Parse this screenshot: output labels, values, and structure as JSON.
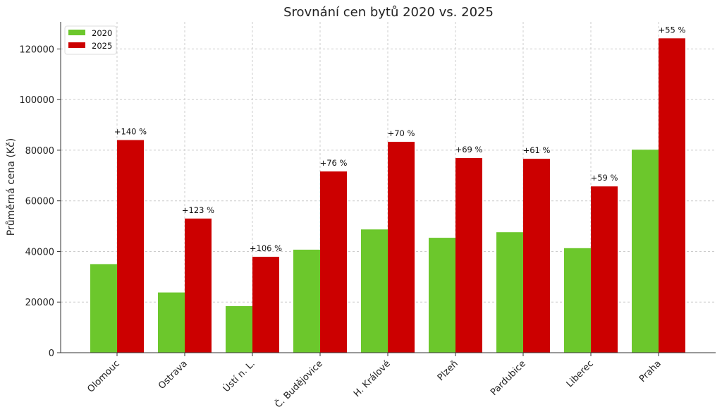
{
  "chart_data": {
    "type": "bar",
    "title": "Srovnání cen bytů 2020 vs. 2025",
    "xlabel": "",
    "ylabel": "Průměrná cena (Kč)",
    "ylim": [
      0,
      130700
    ],
    "yticks": [
      0,
      20000,
      40000,
      60000,
      80000,
      100000,
      120000
    ],
    "grid": true,
    "legend": "top-left",
    "categories": [
      "Olomouc",
      "Ostrava",
      "Ústí n. L.",
      "Č. Budějovice",
      "H. Králové",
      "Plzeň",
      "Pardubice",
      "Liberec",
      "Praha"
    ],
    "series": [
      {
        "name": "2020",
        "color": "#6cc72c",
        "values": [
          35000,
          23800,
          18400,
          40700,
          48700,
          45400,
          47600,
          41300,
          80200
        ]
      },
      {
        "name": "2025",
        "color": "#cc0000",
        "values": [
          84000,
          53000,
          37900,
          71600,
          83300,
          76900,
          76600,
          65700,
          124200
        ]
      }
    ],
    "annotations": [
      "+140 %",
      "+123 %",
      "+106 %",
      "+76 %",
      "+70 %",
      "+69 %",
      "+61 %",
      "+59 %",
      "+55 %"
    ]
  }
}
